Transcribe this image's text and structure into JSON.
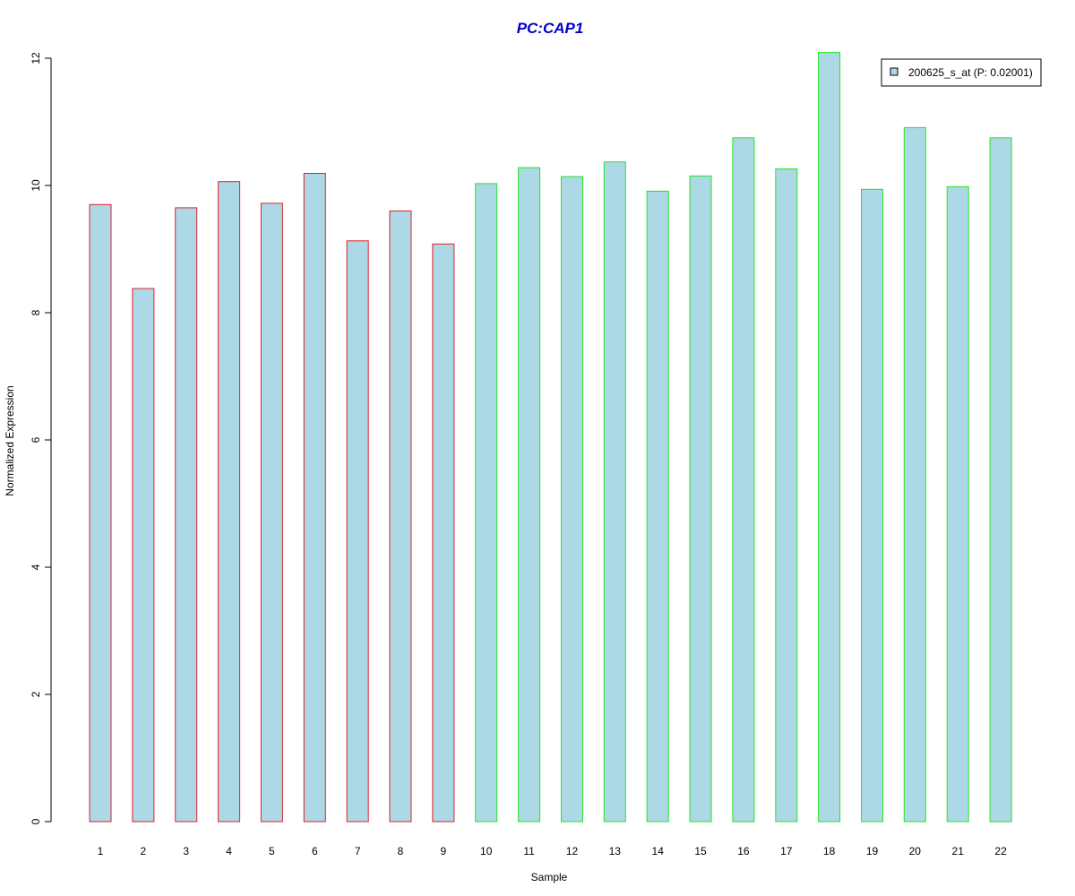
{
  "chart_data": {
    "type": "bar",
    "title": "PC:CAP1",
    "xlabel": "Sample",
    "ylabel": "Normalized Expression",
    "ylim": [
      0,
      12
    ],
    "yticks": [
      0,
      2,
      4,
      6,
      8,
      10,
      12
    ],
    "grid": false,
    "legend_position": "top-right",
    "categories": [
      "1",
      "2",
      "3",
      "4",
      "5",
      "6",
      "7",
      "8",
      "9",
      "10",
      "11",
      "12",
      "13",
      "14",
      "15",
      "16",
      "17",
      "18",
      "19",
      "20",
      "21",
      "22"
    ],
    "series": [
      {
        "name": "200625_s_at (P: 0.02001)",
        "values": [
          9.7,
          8.38,
          9.65,
          10.06,
          9.72,
          10.19,
          9.13,
          9.6,
          9.08,
          10.03,
          10.28,
          10.14,
          10.37,
          9.91,
          10.15,
          10.75,
          10.26,
          12.09,
          9.94,
          10.91,
          9.98,
          10.75
        ],
        "fill_color": "#add8e6"
      }
    ],
    "border_colors": [
      "#e0202a",
      "#e0202a",
      "#e0202a",
      "#e0202a",
      "#e0202a",
      "#e0202a",
      "#e0202a",
      "#e0202a",
      "#e0202a",
      "#22e622",
      "#22e622",
      "#22e622",
      "#22e622",
      "#22e622",
      "#22e622",
      "#22e622",
      "#22e622",
      "#22e622",
      "#22e622",
      "#22e622",
      "#22e622",
      "#22e622"
    ],
    "title_color": "#0000cc"
  }
}
